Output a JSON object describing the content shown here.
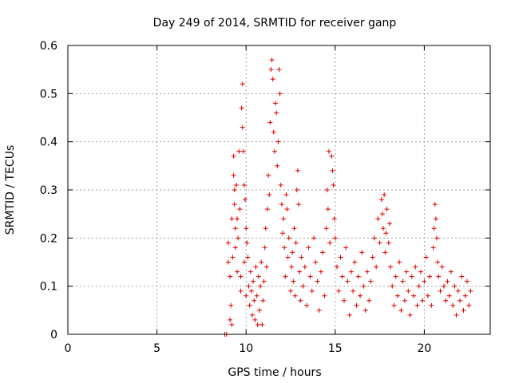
{
  "chart_data": {
    "type": "scatter",
    "title": "Day 249 of 2014, SRMTID for receiver ganp",
    "xlabel": "GPS time / hours",
    "ylabel": "SRMTID / TECUs",
    "xlim": [
      0,
      23.7
    ],
    "ylim": [
      0,
      0.6
    ],
    "x_ticks": [
      0,
      5,
      10,
      15,
      20
    ],
    "y_ticks": [
      0,
      0.1,
      0.2,
      0.3,
      0.4,
      0.5,
      0.6
    ],
    "grid": true,
    "marker": "plus",
    "color": "#dd0000",
    "series": [
      {
        "points": [
          [
            8.8,
            0.0
          ],
          [
            8.9,
            0.0
          ],
          [
            9.0,
            0.19
          ],
          [
            9.0,
            0.15
          ],
          [
            9.1,
            0.12
          ],
          [
            9.1,
            0.03
          ],
          [
            9.15,
            0.06
          ],
          [
            9.2,
            0.02
          ],
          [
            9.2,
            0.24
          ],
          [
            9.25,
            0.16
          ],
          [
            9.3,
            0.37
          ],
          [
            9.3,
            0.33
          ],
          [
            9.35,
            0.3
          ],
          [
            9.35,
            0.27
          ],
          [
            9.4,
            0.22
          ],
          [
            9.4,
            0.18
          ],
          [
            9.45,
            0.31
          ],
          [
            9.5,
            0.24
          ],
          [
            9.5,
            0.13
          ],
          [
            9.55,
            0.2
          ],
          [
            9.6,
            0.38
          ],
          [
            9.65,
            0.26
          ],
          [
            9.7,
            0.12
          ],
          [
            9.7,
            0.09
          ],
          [
            9.75,
            0.47
          ],
          [
            9.8,
            0.52
          ],
          [
            9.8,
            0.43
          ],
          [
            9.85,
            0.38
          ],
          [
            9.9,
            0.31
          ],
          [
            9.9,
            0.15
          ],
          [
            9.95,
            0.28
          ],
          [
            10.0,
            0.22
          ],
          [
            10.0,
            0.08
          ],
          [
            10.05,
            0.19
          ],
          [
            10.1,
            0.16
          ],
          [
            10.15,
            0.1
          ],
          [
            10.2,
            0.06
          ],
          [
            10.25,
            0.13
          ],
          [
            10.3,
            0.09
          ],
          [
            10.35,
            0.04
          ],
          [
            10.4,
            0.11
          ],
          [
            10.45,
            0.07
          ],
          [
            10.5,
            0.03
          ],
          [
            10.55,
            0.14
          ],
          [
            10.6,
            0.08
          ],
          [
            10.65,
            0.02
          ],
          [
            10.7,
            0.12
          ],
          [
            10.75,
            0.05
          ],
          [
            10.8,
            0.1
          ],
          [
            10.85,
            0.15
          ],
          [
            10.9,
            0.02
          ],
          [
            10.95,
            0.07
          ],
          [
            11.0,
            0.11
          ],
          [
            11.05,
            0.18
          ],
          [
            11.1,
            0.22
          ],
          [
            11.15,
            0.14
          ],
          [
            11.2,
            0.26
          ],
          [
            11.25,
            0.33
          ],
          [
            11.3,
            0.29
          ],
          [
            11.35,
            0.44
          ],
          [
            11.4,
            0.55
          ],
          [
            11.45,
            0.57
          ],
          [
            11.5,
            0.53
          ],
          [
            11.55,
            0.42
          ],
          [
            11.6,
            0.38
          ],
          [
            11.65,
            0.48
          ],
          [
            11.7,
            0.46
          ],
          [
            11.75,
            0.35
          ],
          [
            11.8,
            0.4
          ],
          [
            11.85,
            0.55
          ],
          [
            11.9,
            0.5
          ],
          [
            11.95,
            0.31
          ],
          [
            12.0,
            0.27
          ],
          [
            12.05,
            0.21
          ],
          [
            12.1,
            0.24
          ],
          [
            12.15,
            0.18
          ],
          [
            12.2,
            0.12
          ],
          [
            12.25,
            0.29
          ],
          [
            12.3,
            0.26
          ],
          [
            12.35,
            0.16
          ],
          [
            12.4,
            0.2
          ],
          [
            12.5,
            0.09
          ],
          [
            12.55,
            0.14
          ],
          [
            12.6,
            0.17
          ],
          [
            12.65,
            0.11
          ],
          [
            12.7,
            0.22
          ],
          [
            12.75,
            0.08
          ],
          [
            12.8,
            0.19
          ],
          [
            12.85,
            0.3
          ],
          [
            12.9,
            0.34
          ],
          [
            12.95,
            0.27
          ],
          [
            13.0,
            0.13
          ],
          [
            13.05,
            0.07
          ],
          [
            13.1,
            0.16
          ],
          [
            13.2,
            0.1
          ],
          [
            13.3,
            0.14
          ],
          [
            13.4,
            0.06
          ],
          [
            13.5,
            0.18
          ],
          [
            13.6,
            0.12
          ],
          [
            13.7,
            0.09
          ],
          [
            13.8,
            0.2
          ],
          [
            13.9,
            0.15
          ],
          [
            14.0,
            0.11
          ],
          [
            14.1,
            0.05
          ],
          [
            14.2,
            0.13
          ],
          [
            14.3,
            0.17
          ],
          [
            14.4,
            0.08
          ],
          [
            14.5,
            0.22
          ],
          [
            14.55,
            0.3
          ],
          [
            14.6,
            0.26
          ],
          [
            14.65,
            0.38
          ],
          [
            14.7,
            0.19
          ],
          [
            14.8,
            0.37
          ],
          [
            14.85,
            0.34
          ],
          [
            14.9,
            0.31
          ],
          [
            14.95,
            0.24
          ],
          [
            15.0,
            0.2
          ],
          [
            15.1,
            0.14
          ],
          [
            15.2,
            0.09
          ],
          [
            15.3,
            0.16
          ],
          [
            15.4,
            0.12
          ],
          [
            15.5,
            0.07
          ],
          [
            15.6,
            0.18
          ],
          [
            15.7,
            0.11
          ],
          [
            15.8,
            0.04
          ],
          [
            15.9,
            0.13
          ],
          [
            16.0,
            0.09
          ],
          [
            16.1,
            0.15
          ],
          [
            16.2,
            0.06
          ],
          [
            16.3,
            0.12
          ],
          [
            16.4,
            0.08
          ],
          [
            16.5,
            0.17
          ],
          [
            16.6,
            0.1
          ],
          [
            16.7,
            0.05
          ],
          [
            16.8,
            0.13
          ],
          [
            16.9,
            0.07
          ],
          [
            17.0,
            0.11
          ],
          [
            17.1,
            0.16
          ],
          [
            17.2,
            0.2
          ],
          [
            17.3,
            0.14
          ],
          [
            17.4,
            0.24
          ],
          [
            17.5,
            0.19
          ],
          [
            17.6,
            0.28
          ],
          [
            17.65,
            0.25
          ],
          [
            17.7,
            0.22
          ],
          [
            17.75,
            0.29
          ],
          [
            17.8,
            0.17
          ],
          [
            17.85,
            0.21
          ],
          [
            17.9,
            0.26
          ],
          [
            18.0,
            0.19
          ],
          [
            18.05,
            0.23
          ],
          [
            18.1,
            0.14
          ],
          [
            18.2,
            0.1
          ],
          [
            18.3,
            0.06
          ],
          [
            18.4,
            0.12
          ],
          [
            18.5,
            0.08
          ],
          [
            18.6,
            0.15
          ],
          [
            18.7,
            0.05
          ],
          [
            18.8,
            0.11
          ],
          [
            18.9,
            0.07
          ],
          [
            19.0,
            0.13
          ],
          [
            19.1,
            0.09
          ],
          [
            19.2,
            0.04
          ],
          [
            19.3,
            0.12
          ],
          [
            19.4,
            0.08
          ],
          [
            19.5,
            0.14
          ],
          [
            19.6,
            0.06
          ],
          [
            19.7,
            0.1
          ],
          [
            19.8,
            0.13
          ],
          [
            19.9,
            0.07
          ],
          [
            20.0,
            0.11
          ],
          [
            20.1,
            0.16
          ],
          [
            20.2,
            0.08
          ],
          [
            20.3,
            0.12
          ],
          [
            20.4,
            0.06
          ],
          [
            20.5,
            0.18
          ],
          [
            20.55,
            0.22
          ],
          [
            20.6,
            0.27
          ],
          [
            20.65,
            0.24
          ],
          [
            20.7,
            0.2
          ],
          [
            20.75,
            0.15
          ],
          [
            20.8,
            0.12
          ],
          [
            20.9,
            0.09
          ],
          [
            21.0,
            0.14
          ],
          [
            21.1,
            0.1
          ],
          [
            21.2,
            0.07
          ],
          [
            21.3,
            0.11
          ],
          [
            21.4,
            0.08
          ],
          [
            21.5,
            0.13
          ],
          [
            21.6,
            0.06
          ],
          [
            21.7,
            0.1
          ],
          [
            21.8,
            0.04
          ],
          [
            21.9,
            0.09
          ],
          [
            22.0,
            0.07
          ],
          [
            22.1,
            0.12
          ],
          [
            22.2,
            0.05
          ],
          [
            22.3,
            0.08
          ],
          [
            22.4,
            0.11
          ],
          [
            22.5,
            0.06
          ],
          [
            22.6,
            0.09
          ]
        ]
      }
    ]
  }
}
